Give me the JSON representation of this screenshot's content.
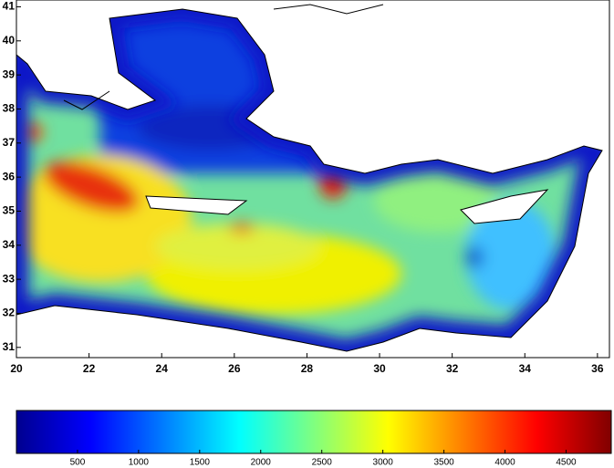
{
  "chart_data": {
    "type": "heatmap",
    "colormap": "jet",
    "xlim": [
      20,
      36.33
    ],
    "ylim": [
      30.7,
      41.2
    ],
    "xticks": [
      20,
      22,
      24,
      26,
      28,
      30,
      32,
      34,
      36
    ],
    "yticks": [
      31,
      32,
      33,
      34,
      35,
      36,
      37,
      38,
      39,
      40,
      41
    ],
    "colorbar": {
      "lim": [
        0,
        4870
      ],
      "ticks": [
        500,
        1000,
        1500,
        2000,
        2500,
        3000,
        3500,
        4000,
        4500
      ]
    }
  }
}
